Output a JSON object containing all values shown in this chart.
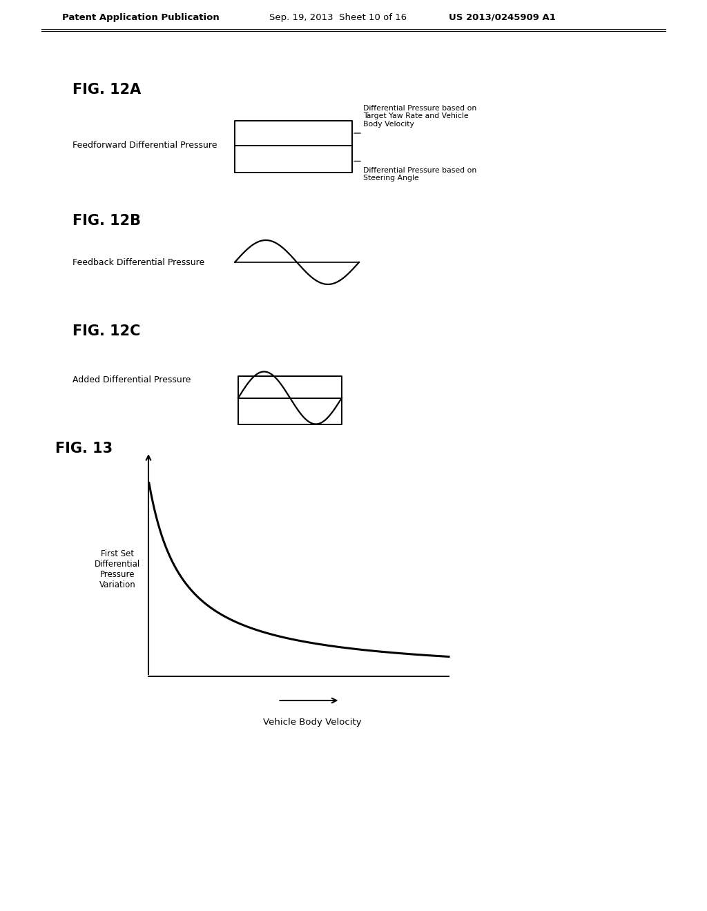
{
  "bg_color": "#ffffff",
  "header_text": "Patent Application Publication",
  "header_date": "Sep. 19, 2013  Sheet 10 of 16",
  "header_patent": "US 2013/0245909 A1",
  "fig12a_title": "FIG. 12A",
  "fig12a_label": "Feedforward Differential Pressure",
  "fig12a_annot1": "Differential Pressure based on\nTarget Yaw Rate and Vehicle\nBody Velocity",
  "fig12a_annot2": "Differential Pressure based on\nSteering Angle",
  "fig12b_title": "FIG. 12B",
  "fig12b_label": "Feedback Differential Pressure",
  "fig12c_title": "FIG. 12C",
  "fig12c_label": "Added Differential Pressure",
  "fig13_title": "FIG. 13",
  "fig13_ylabel": "First Set\nDifferential\nPressure\nVariation",
  "fig13_xlabel": "Vehicle Body Velocity"
}
